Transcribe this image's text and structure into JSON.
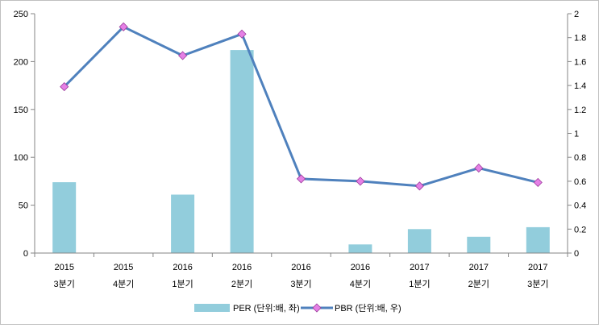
{
  "chart_data": {
    "type": "bar+line",
    "title": "",
    "categories": [
      [
        "2015",
        "3분기"
      ],
      [
        "2015",
        "4분기"
      ],
      [
        "2016",
        "1분기"
      ],
      [
        "2016",
        "2분기"
      ],
      [
        "2016",
        "3분기"
      ],
      [
        "2016",
        "4분기"
      ],
      [
        "2017",
        "1분기"
      ],
      [
        "2017",
        "2분기"
      ],
      [
        "2017",
        "3분기"
      ]
    ],
    "series": [
      {
        "name": "PER (단위:배, 좌)",
        "type": "bar",
        "axis": "left",
        "color": "#92CDDC",
        "values": [
          74,
          null,
          61,
          212,
          null,
          9,
          25,
          17,
          27
        ]
      },
      {
        "name": "PBR (단위:배, 우)",
        "type": "line",
        "axis": "right",
        "color": "#4F81BD",
        "marker_color": "#E580E5",
        "values": [
          1.39,
          1.89,
          1.65,
          1.83,
          0.62,
          0.6,
          0.56,
          0.71,
          0.59
        ]
      }
    ],
    "y_left": {
      "min": 0,
      "max": 250,
      "ticks": [
        0,
        50,
        100,
        150,
        200,
        250
      ]
    },
    "y_right": {
      "min": 0,
      "max": 2,
      "ticks": [
        "0",
        "0.2",
        "0.4",
        "0.6",
        "0.8",
        "1",
        "1.2",
        "1.4",
        "1.6",
        "1.8",
        "2"
      ]
    },
    "grid": false,
    "legend_position": "bottom"
  }
}
